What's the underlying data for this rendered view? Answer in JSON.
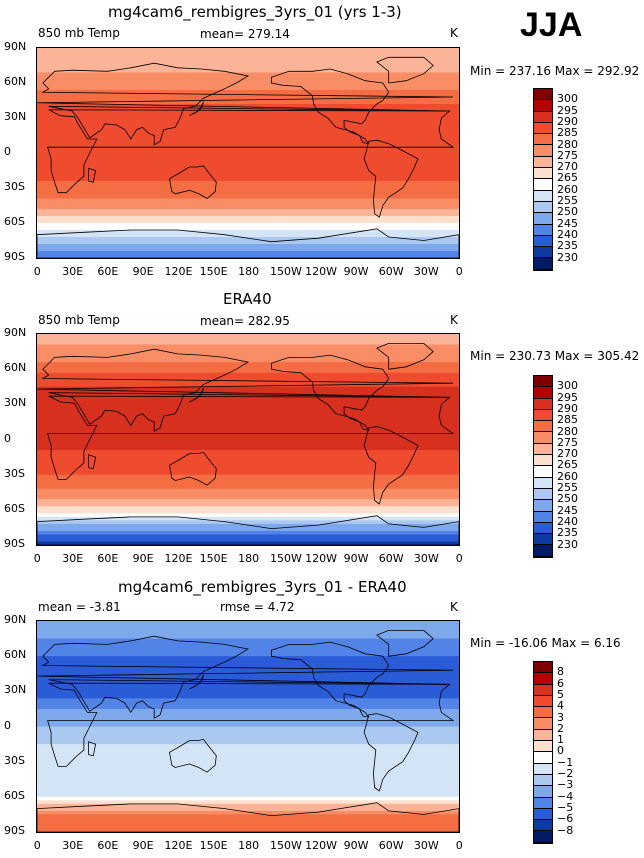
{
  "season": "JJA",
  "panels": [
    {
      "title": "mg4cam6_rembigres_3yrs_01 (yrs 1-3)",
      "left_label": "850 mb Temp",
      "center_label": "mean= 279.14",
      "units": "K",
      "minmax": "Min = 237.16 Max = 292.92",
      "colorbar_labels": [
        "300",
        "295",
        "290",
        "285",
        "280",
        "275",
        "270",
        "265",
        "260",
        "255",
        "250",
        "245",
        "240",
        "235",
        "230"
      ],
      "colorbar_colors": [
        "#7f0000",
        "#b30000",
        "#d7301f",
        "#ef4b2f",
        "#f46d43",
        "#f88d66",
        "#fbb497",
        "#fde0cd",
        "#ffffff",
        "#d4e4f7",
        "#aac8f0",
        "#7ea8ec",
        "#5284e8",
        "#2b5cd8",
        "#0d3aa0",
        "#001a66"
      ],
      "chart_data": {
        "type": "heatmap",
        "title": "mg4cam6_rembigres_3yrs_01 (yrs 1-3)",
        "variable": "850 mb Temp",
        "units": "K",
        "mean": 279.14,
        "min": 237.16,
        "max": 292.92,
        "zonal_profile": {
          "lat": [
            90,
            75,
            60,
            45,
            30,
            15,
            0,
            -15,
            -30,
            -45,
            -60,
            -75,
            -90
          ],
          "value": [
            270,
            272,
            278,
            284,
            288,
            290,
            289,
            287,
            283,
            277,
            266,
            252,
            240
          ]
        }
      }
    },
    {
      "title": "ERA40",
      "left_label": "850 mb Temp",
      "center_label": "mean= 282.95",
      "units": "K",
      "minmax": "Min = 230.73 Max = 305.42",
      "colorbar_labels": [
        "300",
        "295",
        "290",
        "285",
        "280",
        "275",
        "270",
        "265",
        "260",
        "255",
        "250",
        "245",
        "240",
        "235",
        "230"
      ],
      "colorbar_colors": [
        "#7f0000",
        "#b30000",
        "#d7301f",
        "#ef4b2f",
        "#f46d43",
        "#f88d66",
        "#fbb497",
        "#fde0cd",
        "#ffffff",
        "#d4e4f7",
        "#aac8f0",
        "#7ea8ec",
        "#5284e8",
        "#2b5cd8",
        "#0d3aa0",
        "#001a66"
      ],
      "chart_data": {
        "type": "heatmap",
        "title": "ERA40",
        "variable": "850 mb Temp",
        "units": "K",
        "mean": 282.95,
        "min": 230.73,
        "max": 305.42,
        "zonal_profile": {
          "lat": [
            90,
            75,
            60,
            45,
            30,
            15,
            0,
            -15,
            -30,
            -45,
            -60,
            -75,
            -90
          ],
          "value": [
            273,
            276,
            283,
            290,
            294,
            293,
            291,
            289,
            285,
            279,
            267,
            247,
            232
          ]
        }
      }
    },
    {
      "title": "mg4cam6_rembigres_3yrs_01 - ERA40",
      "left_label": "mean =  -3.81",
      "center_label": "rmse =   4.72",
      "units": "K",
      "minmax": "Min = -16.06 Max =   6.16",
      "colorbar_labels": [
        "8",
        "6",
        "5",
        "4",
        "3",
        "2",
        "1",
        "0",
        "−1",
        "−2",
        "−3",
        "−4",
        "−5",
        "−6",
        "−8"
      ],
      "colorbar_colors": [
        "#7f0000",
        "#b30000",
        "#d7301f",
        "#ef4b2f",
        "#f46d43",
        "#f88d66",
        "#fbb497",
        "#fde0cd",
        "#ffffff",
        "#d4e4f7",
        "#aac8f0",
        "#7ea8ec",
        "#5284e8",
        "#2b5cd8",
        "#0d3aa0",
        "#001a66"
      ],
      "chart_data": {
        "type": "heatmap",
        "title": "mg4cam6_rembigres_3yrs_01 - ERA40",
        "variable": "850 mb Temp difference",
        "units": "K",
        "mean": -3.81,
        "rmse": 4.72,
        "min": -16.06,
        "max": 6.16,
        "zonal_profile": {
          "lat": [
            90,
            75,
            60,
            45,
            30,
            15,
            0,
            -15,
            -30,
            -45,
            -60,
            -75,
            -90
          ],
          "value": [
            -3,
            -4,
            -5,
            -6,
            -6,
            -4,
            -3,
            -2,
            -2,
            -2,
            -1,
            3,
            4
          ]
        }
      }
    }
  ],
  "axes": {
    "lat_ticks": [
      "90N",
      "60N",
      "30N",
      "0",
      "30S",
      "60S",
      "90S"
    ],
    "lon_ticks": [
      "0",
      "30E",
      "60E",
      "90E",
      "120E",
      "150E",
      "180",
      "150W",
      "120W",
      "90W",
      "60W",
      "30W",
      "0"
    ]
  }
}
